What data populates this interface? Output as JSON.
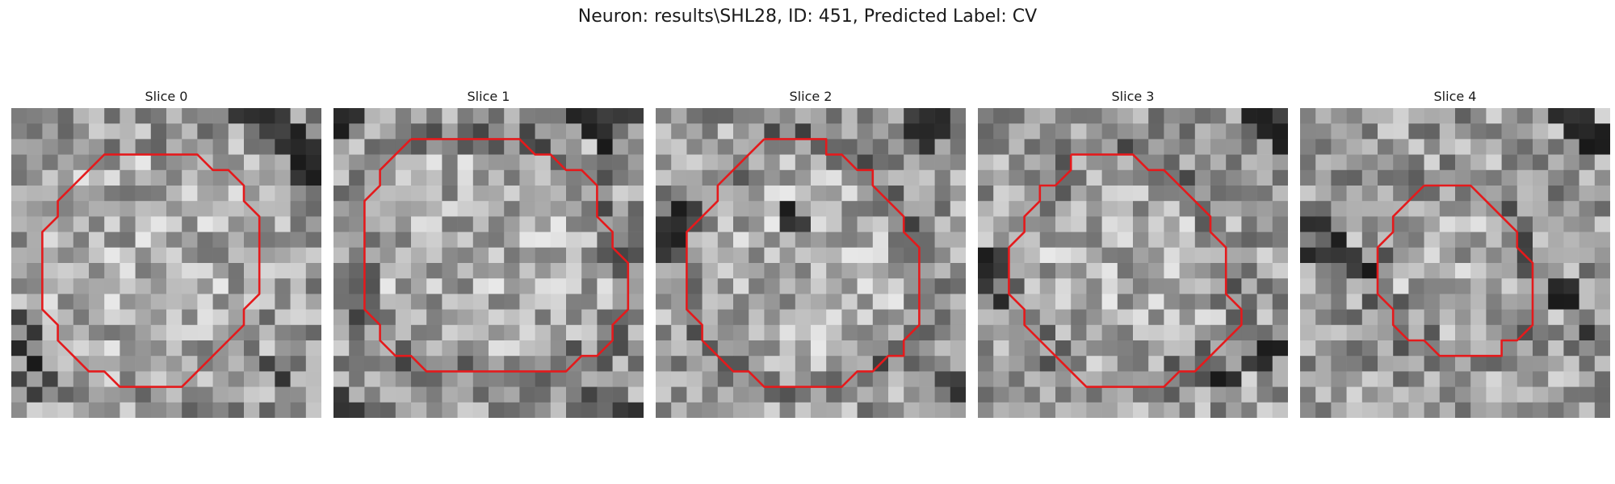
{
  "figure": {
    "title": "Neuron: results\\SHL28, ID: 451, Predicted Label: CV"
  },
  "panels": [
    {
      "title": "Slice 0",
      "seed": 11,
      "dark_ring": false,
      "contour": [
        [
          8,
          3
        ],
        [
          12,
          3
        ],
        [
          13,
          4
        ],
        [
          14,
          4
        ],
        [
          15,
          5
        ],
        [
          15,
          6
        ],
        [
          16,
          7
        ],
        [
          16,
          8
        ],
        [
          16,
          9
        ],
        [
          16,
          10
        ],
        [
          16,
          11
        ],
        [
          16,
          12
        ],
        [
          15,
          13
        ],
        [
          15,
          14
        ],
        [
          14,
          15
        ],
        [
          13,
          16
        ],
        [
          12,
          17
        ],
        [
          11,
          18
        ],
        [
          9,
          18
        ],
        [
          8,
          18
        ],
        [
          7,
          18
        ],
        [
          6,
          17
        ],
        [
          5,
          17
        ],
        [
          4,
          16
        ],
        [
          3,
          15
        ],
        [
          3,
          14
        ],
        [
          2,
          13
        ],
        [
          2,
          12
        ],
        [
          2,
          11
        ],
        [
          2,
          10
        ],
        [
          2,
          9
        ],
        [
          2,
          8
        ],
        [
          3,
          7
        ],
        [
          3,
          6
        ],
        [
          4,
          5
        ],
        [
          5,
          4
        ],
        [
          6,
          3
        ],
        [
          8,
          3
        ]
      ],
      "dark_patches": [
        [
          15,
          0
        ],
        [
          16,
          0
        ],
        [
          17,
          0
        ],
        [
          16,
          1
        ],
        [
          17,
          1
        ],
        [
          18,
          1
        ],
        [
          17,
          2
        ],
        [
          18,
          2
        ],
        [
          19,
          2
        ],
        [
          18,
          3
        ],
        [
          19,
          3
        ],
        [
          19,
          4
        ],
        [
          14,
          0
        ],
        [
          18,
          4
        ],
        [
          0,
          13
        ],
        [
          1,
          14
        ],
        [
          0,
          15
        ],
        [
          1,
          16
        ],
        [
          0,
          17
        ],
        [
          1,
          18
        ],
        [
          2,
          17
        ],
        [
          16,
          16
        ],
        [
          17,
          17
        ]
      ]
    },
    {
      "title": "Slice 1",
      "seed": 23,
      "dark_ring": true,
      "contour": [
        [
          5,
          2
        ],
        [
          8,
          2
        ],
        [
          9,
          2
        ],
        [
          10,
          2
        ],
        [
          11,
          2
        ],
        [
          12,
          2
        ],
        [
          13,
          3
        ],
        [
          14,
          3
        ],
        [
          15,
          4
        ],
        [
          16,
          4
        ],
        [
          17,
          5
        ],
        [
          17,
          6
        ],
        [
          17,
          7
        ],
        [
          18,
          8
        ],
        [
          18,
          9
        ],
        [
          19,
          10
        ],
        [
          19,
          11
        ],
        [
          19,
          12
        ],
        [
          19,
          13
        ],
        [
          18,
          14
        ],
        [
          18,
          15
        ],
        [
          17,
          16
        ],
        [
          16,
          16
        ],
        [
          15,
          17
        ],
        [
          14,
          17
        ],
        [
          13,
          17
        ],
        [
          12,
          17
        ],
        [
          11,
          17
        ],
        [
          10,
          17
        ],
        [
          9,
          17
        ],
        [
          8,
          17
        ],
        [
          7,
          17
        ],
        [
          6,
          17
        ],
        [
          5,
          16
        ],
        [
          4,
          16
        ],
        [
          3,
          15
        ],
        [
          3,
          14
        ],
        [
          2,
          13
        ],
        [
          2,
          12
        ],
        [
          2,
          11
        ],
        [
          2,
          10
        ],
        [
          2,
          9
        ],
        [
          2,
          8
        ],
        [
          2,
          7
        ],
        [
          2,
          6
        ],
        [
          3,
          5
        ],
        [
          3,
          4
        ],
        [
          4,
          3
        ],
        [
          5,
          2
        ]
      ],
      "dark_patches": [
        [
          15,
          0
        ],
        [
          16,
          0
        ],
        [
          17,
          0
        ],
        [
          16,
          1
        ],
        [
          17,
          1
        ],
        [
          17,
          2
        ],
        [
          18,
          0
        ],
        [
          19,
          0
        ],
        [
          0,
          0
        ],
        [
          1,
          0
        ],
        [
          0,
          1
        ],
        [
          0,
          18
        ],
        [
          1,
          19
        ],
        [
          0,
          19
        ],
        [
          18,
          19
        ],
        [
          19,
          19
        ],
        [
          16,
          18
        ]
      ]
    },
    {
      "title": "Slice 2",
      "seed": 37,
      "dark_ring": true,
      "contour": [
        [
          7,
          2
        ],
        [
          8,
          2
        ],
        [
          10,
          2
        ],
        [
          11,
          2
        ],
        [
          11,
          3
        ],
        [
          12,
          3
        ],
        [
          13,
          4
        ],
        [
          14,
          4
        ],
        [
          14,
          5
        ],
        [
          15,
          6
        ],
        [
          16,
          7
        ],
        [
          16,
          8
        ],
        [
          17,
          9
        ],
        [
          17,
          10
        ],
        [
          17,
          11
        ],
        [
          17,
          12
        ],
        [
          17,
          13
        ],
        [
          17,
          14
        ],
        [
          16,
          15
        ],
        [
          16,
          16
        ],
        [
          15,
          16
        ],
        [
          14,
          17
        ],
        [
          13,
          17
        ],
        [
          12,
          18
        ],
        [
          11,
          18
        ],
        [
          10,
          18
        ],
        [
          9,
          18
        ],
        [
          8,
          18
        ],
        [
          7,
          18
        ],
        [
          6,
          17
        ],
        [
          5,
          17
        ],
        [
          4,
          16
        ],
        [
          3,
          15
        ],
        [
          3,
          14
        ],
        [
          2,
          13
        ],
        [
          2,
          12
        ],
        [
          2,
          11
        ],
        [
          2,
          10
        ],
        [
          2,
          9
        ],
        [
          2,
          8
        ],
        [
          3,
          7
        ],
        [
          4,
          6
        ],
        [
          4,
          5
        ],
        [
          5,
          4
        ],
        [
          6,
          3
        ],
        [
          7,
          2
        ]
      ],
      "dark_patches": [
        [
          16,
          0
        ],
        [
          17,
          0
        ],
        [
          18,
          0
        ],
        [
          16,
          1
        ],
        [
          17,
          1
        ],
        [
          18,
          1
        ],
        [
          17,
          2
        ],
        [
          0,
          7
        ],
        [
          1,
          7
        ],
        [
          0,
          8
        ],
        [
          1,
          8
        ],
        [
          0,
          9
        ],
        [
          2,
          6
        ],
        [
          1,
          6
        ],
        [
          8,
          6
        ],
        [
          9,
          7
        ],
        [
          8,
          7
        ],
        [
          18,
          17
        ],
        [
          19,
          17
        ],
        [
          19,
          18
        ]
      ]
    },
    {
      "title": "Slice 3",
      "seed": 53,
      "dark_ring": true,
      "contour": [
        [
          6,
          3
        ],
        [
          8,
          3
        ],
        [
          9,
          3
        ],
        [
          10,
          3
        ],
        [
          11,
          4
        ],
        [
          12,
          4
        ],
        [
          13,
          5
        ],
        [
          14,
          6
        ],
        [
          15,
          7
        ],
        [
          15,
          8
        ],
        [
          16,
          9
        ],
        [
          16,
          10
        ],
        [
          16,
          11
        ],
        [
          16,
          12
        ],
        [
          17,
          13
        ],
        [
          17,
          14
        ],
        [
          16,
          15
        ],
        [
          15,
          16
        ],
        [
          14,
          17
        ],
        [
          13,
          17
        ],
        [
          12,
          18
        ],
        [
          11,
          18
        ],
        [
          10,
          18
        ],
        [
          9,
          18
        ],
        [
          8,
          18
        ],
        [
          7,
          18
        ],
        [
          6,
          17
        ],
        [
          5,
          16
        ],
        [
          4,
          15
        ],
        [
          3,
          14
        ],
        [
          3,
          13
        ],
        [
          2,
          12
        ],
        [
          2,
          11
        ],
        [
          2,
          10
        ],
        [
          2,
          9
        ],
        [
          3,
          8
        ],
        [
          3,
          7
        ],
        [
          4,
          6
        ],
        [
          4,
          5
        ],
        [
          5,
          5
        ],
        [
          6,
          4
        ],
        [
          6,
          3
        ]
      ],
      "dark_patches": [
        [
          0,
          9
        ],
        [
          1,
          9
        ],
        [
          0,
          10
        ],
        [
          1,
          10
        ],
        [
          0,
          11
        ],
        [
          1,
          12
        ],
        [
          17,
          0
        ],
        [
          18,
          0
        ],
        [
          19,
          0
        ],
        [
          18,
          1
        ],
        [
          19,
          1
        ],
        [
          19,
          2
        ],
        [
          18,
          15
        ],
        [
          19,
          15
        ],
        [
          17,
          16
        ],
        [
          18,
          16
        ],
        [
          15,
          17
        ],
        [
          16,
          17
        ]
      ]
    },
    {
      "title": "Slice 4",
      "seed": 71,
      "dark_ring": true,
      "contour": [
        [
          8,
          5
        ],
        [
          11,
          5
        ],
        [
          12,
          6
        ],
        [
          13,
          7
        ],
        [
          14,
          8
        ],
        [
          14,
          9
        ],
        [
          15,
          10
        ],
        [
          15,
          11
        ],
        [
          15,
          12
        ],
        [
          15,
          13
        ],
        [
          15,
          14
        ],
        [
          14,
          15
        ],
        [
          13,
          15
        ],
        [
          13,
          16
        ],
        [
          12,
          16
        ],
        [
          11,
          16
        ],
        [
          10,
          16
        ],
        [
          9,
          16
        ],
        [
          8,
          15
        ],
        [
          7,
          15
        ],
        [
          6,
          14
        ],
        [
          6,
          13
        ],
        [
          5,
          12
        ],
        [
          5,
          11
        ],
        [
          5,
          10
        ],
        [
          5,
          9
        ],
        [
          6,
          8
        ],
        [
          6,
          7
        ],
        [
          7,
          6
        ],
        [
          8,
          5
        ]
      ],
      "dark_patches": [
        [
          16,
          0
        ],
        [
          17,
          0
        ],
        [
          18,
          0
        ],
        [
          17,
          1
        ],
        [
          18,
          1
        ],
        [
          19,
          1
        ],
        [
          18,
          2
        ],
        [
          19,
          2
        ],
        [
          0,
          9
        ],
        [
          1,
          9
        ],
        [
          2,
          9
        ],
        [
          3,
          9
        ],
        [
          3,
          10
        ],
        [
          4,
          10
        ],
        [
          2,
          8
        ],
        [
          1,
          7
        ],
        [
          0,
          7
        ],
        [
          16,
          11
        ],
        [
          17,
          11
        ],
        [
          17,
          12
        ],
        [
          16,
          12
        ],
        [
          18,
          14
        ]
      ]
    }
  ],
  "colors": {
    "contour": "#e41a1c",
    "text": "#1a1a1a"
  }
}
